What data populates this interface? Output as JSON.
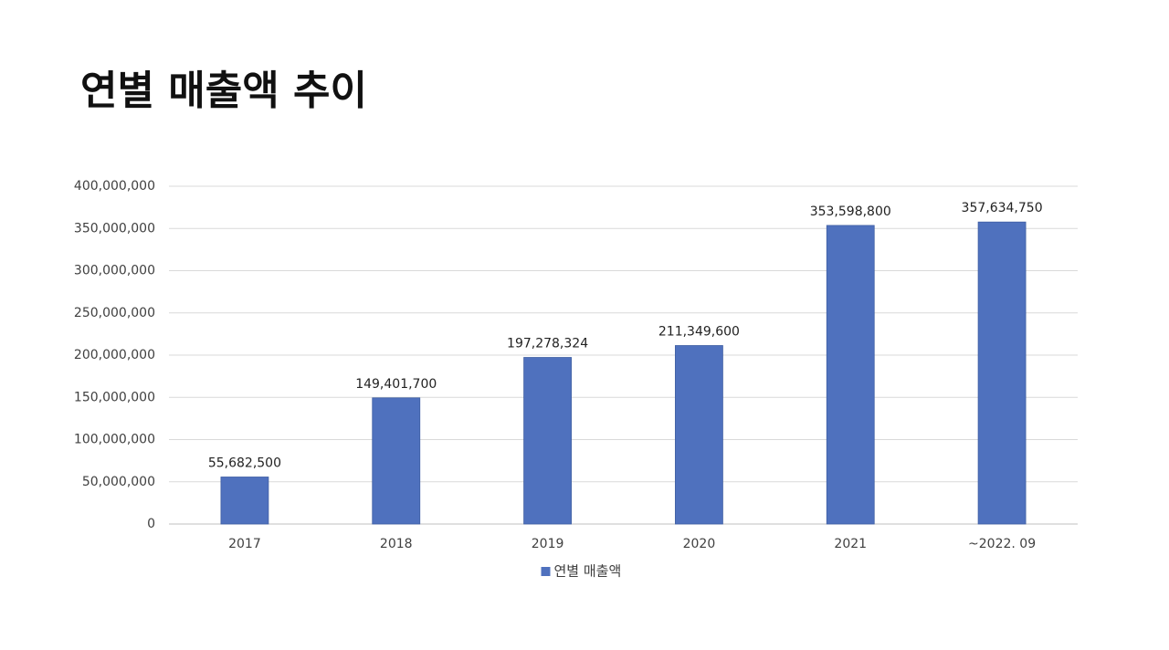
{
  "chart_data": {
    "type": "bar",
    "title": "연별 매출액 추이",
    "categories": [
      "2017",
      "2018",
      "2019",
      "2020",
      "2021",
      "~2022. 09"
    ],
    "series": [
      {
        "name": "연별 매출액",
        "color": "#4f71be",
        "values": [
          55682500,
          149401700,
          197278324,
          211349600,
          353598800,
          357634750
        ],
        "value_labels": [
          "55,682,500",
          "149,401,700",
          "197,278,324",
          "211,349,600",
          "353,598,800",
          "357,634,750"
        ]
      }
    ],
    "ylim": [
      0,
      400000000
    ],
    "yticks": [
      0,
      {
        "value": 50000000,
        "label": "50,000,000"
      },
      {
        "value": 100000000,
        "label": "100,000,000"
      },
      {
        "value": 150000000,
        "label": "150,000,000"
      },
      {
        "value": 200000000,
        "label": "200,000,000"
      },
      {
        "value": 250000000,
        "label": "250,000,000"
      },
      {
        "value": 300000000,
        "label": "300,000,000"
      },
      {
        "value": 350000000,
        "label": "350,000,000"
      },
      {
        "value": 400000000,
        "label": "400,000,000"
      }
    ],
    "grid": true,
    "legend": "bottom"
  }
}
